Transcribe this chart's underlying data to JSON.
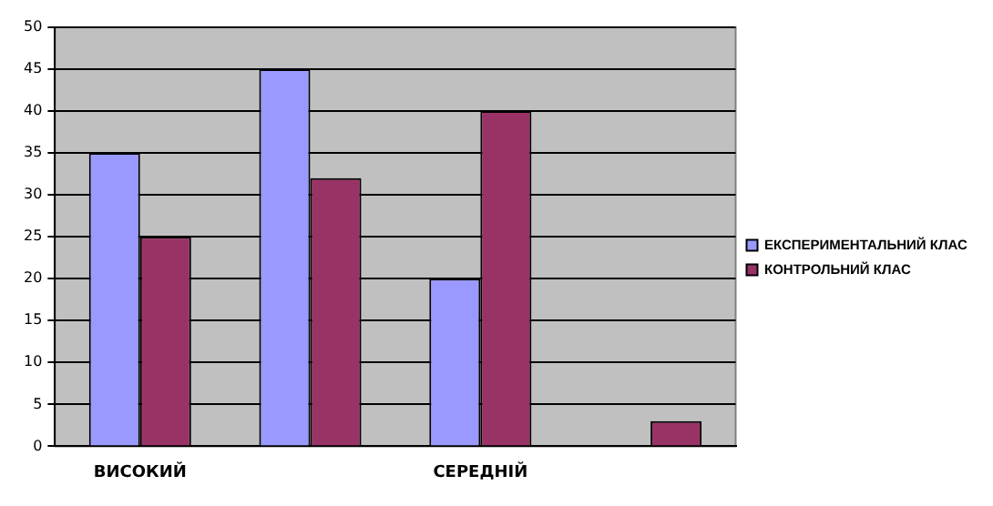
{
  "chart_data": {
    "type": "bar",
    "categories": [
      "ВИСОКИЙ",
      null,
      "СЕРЕДНІЙ",
      null
    ],
    "series": [
      {
        "name": "ЕКСПЕРИМЕНТАЛЬНИЙ КЛАС",
        "color": "#9999ff",
        "values": [
          35,
          45,
          20,
          0
        ]
      },
      {
        "name": "КОНТРОЛЬНИЙ КЛАС",
        "color": "#993366",
        "values": [
          25,
          32,
          40,
          3
        ]
      }
    ],
    "ylim": [
      0,
      50
    ],
    "yticks": [
      0,
      5,
      10,
      15,
      20,
      25,
      30,
      35,
      40,
      45,
      50
    ],
    "grid": "y",
    "legend": "right"
  }
}
